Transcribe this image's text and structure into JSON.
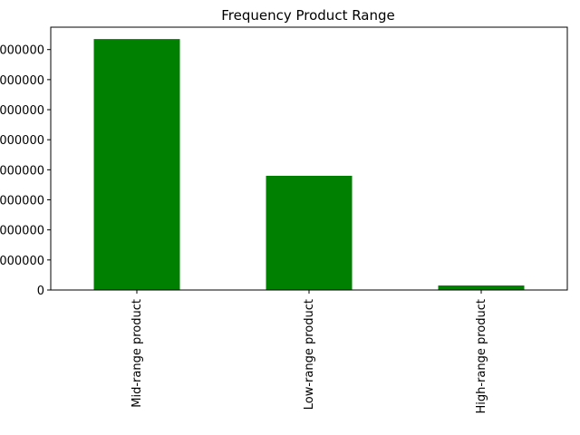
{
  "chart_data": {
    "type": "bar",
    "title": "Frequency Product Range",
    "xlabel": "",
    "ylabel": "",
    "categories": [
      "Mid-range product",
      "Low-range product",
      "High-range product"
    ],
    "values": [
      16700000,
      7600000,
      300000
    ],
    "ylim": [
      0,
      17490000
    ],
    "yticks": [
      0,
      2000000,
      4000000,
      6000000,
      8000000,
      10000000,
      12000000,
      14000000,
      16000000
    ],
    "ytick_labels": [
      "0",
      "000000",
      "000000",
      "000000",
      "000000",
      "000000",
      "000000",
      "000000",
      "000000"
    ],
    "bar_color": "#008000",
    "grid": false,
    "legend": "none"
  }
}
